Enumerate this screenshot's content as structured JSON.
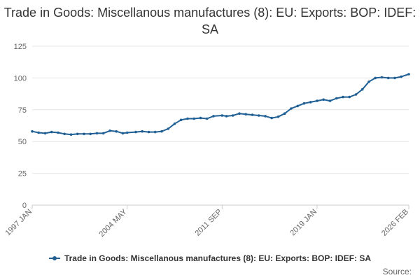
{
  "chart_data": {
    "type": "line",
    "title": "Trade in Goods: Miscellanous manufactures (8): EU: Exports: BOP: IDEF: SA",
    "xlabel": "",
    "ylabel": "",
    "ylim": [
      0,
      125
    ],
    "yticks": [
      0,
      25,
      50,
      75,
      100,
      125
    ],
    "grid": true,
    "legend_position": "bottom",
    "x_tick_labels": [
      "1997 JAN",
      "2004 MAY",
      "2011 SEP",
      "2019 JAN",
      "2026 FEB"
    ],
    "color": "#206095",
    "series": [
      {
        "name": "Trade in Goods: Miscellanous manufactures (8): EU: Exports: BOP: IDEF: SA",
        "points": [
          [
            "1997 JAN",
            58
          ],
          [
            "1997 JUL",
            57
          ],
          [
            "1998 JAN",
            56.5
          ],
          [
            "1998 JUL",
            57.5
          ],
          [
            "1999 JAN",
            57
          ],
          [
            "1999 JUL",
            56
          ],
          [
            "2000 JAN",
            55.5
          ],
          [
            "2000 JUL",
            56
          ],
          [
            "2001 JAN",
            56
          ],
          [
            "2001 JUL",
            56
          ],
          [
            "2002 JAN",
            56.5
          ],
          [
            "2002 JUL",
            56.5
          ],
          [
            "2003 JAN",
            58.5
          ],
          [
            "2003 JUL",
            58
          ],
          [
            "2004 JAN",
            56.5
          ],
          [
            "2004 MAY",
            57
          ],
          [
            "2005 JAN",
            57.5
          ],
          [
            "2005 JUL",
            58
          ],
          [
            "2006 JAN",
            57.5
          ],
          [
            "2006 JUL",
            57.5
          ],
          [
            "2007 JAN",
            58
          ],
          [
            "2007 JUL",
            60
          ],
          [
            "2008 JAN",
            64
          ],
          [
            "2008 JUL",
            67
          ],
          [
            "2009 JAN",
            68
          ],
          [
            "2009 JUL",
            68
          ],
          [
            "2010 JAN",
            68.5
          ],
          [
            "2010 JUL",
            68
          ],
          [
            "2011 JAN",
            70
          ],
          [
            "2011 SEP",
            70.5
          ],
          [
            "2012 JAN",
            70
          ],
          [
            "2012 JUL",
            70.5
          ],
          [
            "2013 JAN",
            72
          ],
          [
            "2013 JUL",
            71.5
          ],
          [
            "2014 JAN",
            71
          ],
          [
            "2014 JUL",
            70.5
          ],
          [
            "2015 JAN",
            70
          ],
          [
            "2015 JUL",
            68.5
          ],
          [
            "2016 JAN",
            69.5
          ],
          [
            "2016 JUL",
            72
          ],
          [
            "2017 JAN",
            76
          ],
          [
            "2017 JUL",
            78
          ],
          [
            "2018 JAN",
            80
          ],
          [
            "2018 JUL",
            81
          ],
          [
            "2019 JAN",
            82
          ],
          [
            "2019 JUL",
            83
          ],
          [
            "2020 JAN",
            82
          ],
          [
            "2020 JUL",
            84
          ],
          [
            "2021 JAN",
            85
          ],
          [
            "2021 JUL",
            85
          ],
          [
            "2022 JAN",
            87
          ],
          [
            "2022 JUL",
            91
          ],
          [
            "2023 JAN",
            97
          ],
          [
            "2023 JUL",
            100
          ],
          [
            "2024 JAN",
            100.5
          ],
          [
            "2024 JUL",
            100
          ],
          [
            "2025 JAN",
            100
          ],
          [
            "2025 JUL",
            101
          ],
          [
            "2026 FEB",
            103
          ]
        ]
      }
    ]
  },
  "source_label": "Source:"
}
